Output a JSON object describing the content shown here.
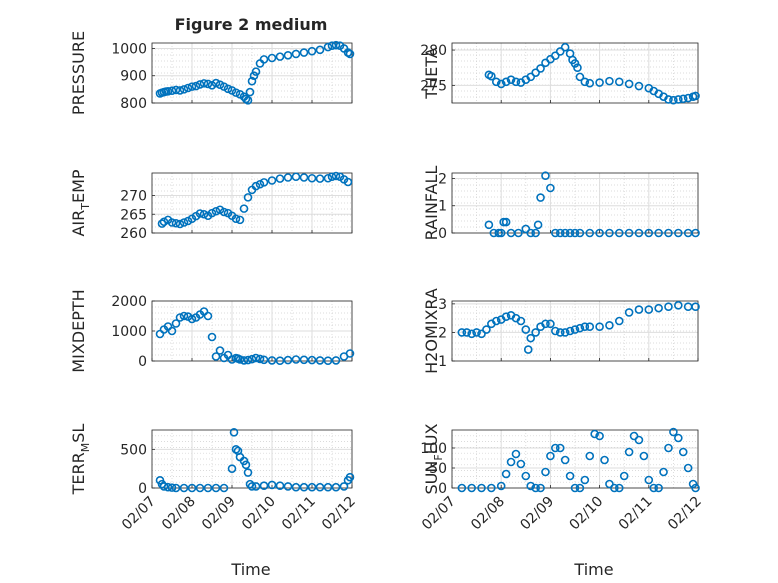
{
  "figure": {
    "title": "Figure 2 medium",
    "xlabel": "Time",
    "x_ticks": [
      "02/07",
      "02/08",
      "02/09",
      "02/10",
      "02/11",
      "02/12"
    ],
    "marker_color": "#0072bd",
    "grid_color": "#cfcfcf",
    "axis_color": "#262626"
  },
  "chart_data": [
    {
      "type": "scatter",
      "name": "PRESSURE",
      "ylabel_parts": [
        "PRESSURE"
      ],
      "xlim": [
        0,
        5
      ],
      "ylim": [
        800,
        1020
      ],
      "yticks": [
        800,
        900,
        1000
      ],
      "show_x_ticklabels": false,
      "x": [
        0.2,
        0.25,
        0.3,
        0.35,
        0.4,
        0.5,
        0.6,
        0.7,
        0.8,
        0.9,
        1.0,
        1.1,
        1.2,
        1.3,
        1.4,
        1.5,
        1.6,
        1.7,
        1.8,
        1.9,
        2.0,
        2.1,
        2.2,
        2.3,
        2.35,
        2.4,
        2.45,
        2.5,
        2.55,
        2.6,
        2.7,
        2.8,
        3.0,
        3.2,
        3.4,
        3.6,
        3.8,
        4.0,
        4.2,
        4.4,
        4.5,
        4.6,
        4.7,
        4.8,
        4.9,
        4.95
      ],
      "y": [
        835,
        838,
        840,
        842,
        843,
        845,
        848,
        846,
        850,
        855,
        860,
        862,
        868,
        872,
        870,
        865,
        873,
        867,
        860,
        852,
        846,
        838,
        832,
        823,
        815,
        810,
        840,
        880,
        900,
        915,
        945,
        960,
        965,
        970,
        975,
        980,
        985,
        990,
        995,
        1005,
        1010,
        1012,
        1010,
        1000,
        985,
        980
      ]
    },
    {
      "type": "scatter",
      "name": "THETA",
      "ylabel_parts": [
        "THETA"
      ],
      "xlim": [
        0,
        5
      ],
      "ylim": [
        272.5,
        281
      ],
      "yticks": [
        275,
        280
      ],
      "show_x_ticklabels": false,
      "x": [
        0.75,
        0.8,
        0.9,
        1.0,
        1.1,
        1.2,
        1.3,
        1.4,
        1.5,
        1.6,
        1.7,
        1.8,
        1.9,
        2.0,
        2.1,
        2.2,
        2.3,
        2.4,
        2.45,
        2.5,
        2.55,
        2.6,
        2.7,
        2.8,
        3.0,
        3.2,
        3.4,
        3.6,
        3.8,
        4.0,
        4.1,
        4.2,
        4.3,
        4.4,
        4.5,
        4.6,
        4.7,
        4.8,
        4.9,
        4.95
      ],
      "y": [
        276.5,
        276.3,
        275.5,
        275.2,
        275.5,
        275.8,
        275.5,
        275.4,
        275.8,
        276.2,
        276.8,
        277.4,
        278.2,
        278.7,
        279.2,
        279.8,
        280.4,
        279.5,
        278.6,
        278.1,
        277.5,
        276.2,
        275.5,
        275.3,
        275.4,
        275.6,
        275.5,
        275.2,
        274.9,
        274.6,
        274.2,
        273.8,
        273.4,
        273.0,
        272.9,
        273.0,
        273.1,
        273.2,
        273.4,
        273.5
      ]
    },
    {
      "type": "scatter",
      "name": "AIR_TEMP",
      "ylabel_parts": [
        "AIR",
        "T",
        "EMP"
      ],
      "xlim": [
        0,
        5
      ],
      "ylim": [
        260,
        276
      ],
      "yticks": [
        260,
        265,
        270
      ],
      "show_x_ticklabels": false,
      "x": [
        0.25,
        0.3,
        0.4,
        0.5,
        0.6,
        0.7,
        0.8,
        0.9,
        1.0,
        1.1,
        1.2,
        1.3,
        1.4,
        1.5,
        1.6,
        1.7,
        1.8,
        1.9,
        2.0,
        2.1,
        2.2,
        2.3,
        2.4,
        2.5,
        2.6,
        2.7,
        2.8,
        3.0,
        3.2,
        3.4,
        3.6,
        3.8,
        4.0,
        4.2,
        4.4,
        4.5,
        4.6,
        4.7,
        4.8,
        4.9
      ],
      "y": [
        262.5,
        263,
        263.5,
        262.8,
        262.6,
        262.4,
        262.8,
        263.2,
        263.8,
        264.5,
        265.2,
        265,
        264.6,
        265.3,
        265.8,
        266.2,
        265.6,
        265.3,
        264.6,
        263.8,
        263.5,
        266.5,
        269.5,
        271.5,
        272.5,
        273,
        273.5,
        274,
        274.5,
        274.8,
        275,
        274.8,
        274.6,
        274.5,
        274.6,
        275,
        275.2,
        275,
        274.3,
        273.6
      ]
    },
    {
      "type": "scatter",
      "name": "RAINFALL",
      "ylabel_parts": [
        "RAINFALL"
      ],
      "xlim": [
        0,
        5
      ],
      "ylim": [
        0,
        2.2
      ],
      "yticks": [
        0,
        1,
        2
      ],
      "show_x_ticklabels": false,
      "x": [
        0.75,
        0.85,
        0.95,
        1.0,
        1.05,
        1.1,
        1.2,
        1.35,
        1.5,
        1.6,
        1.7,
        1.75,
        1.8,
        1.9,
        2.0,
        2.1,
        2.2,
        2.3,
        2.4,
        2.5,
        2.6,
        2.8,
        3.0,
        3.2,
        3.4,
        3.6,
        3.8,
        4.0,
        4.2,
        4.4,
        4.6,
        4.8,
        4.95
      ],
      "y": [
        0.3,
        0,
        0,
        0,
        0.4,
        0.4,
        0,
        0,
        0.15,
        0,
        0,
        0.3,
        1.3,
        2.1,
        1.65,
        0,
        0,
        0,
        0,
        0,
        0,
        0,
        0,
        0,
        0,
        0,
        0,
        0,
        0,
        0,
        0,
        0,
        0
      ]
    },
    {
      "type": "scatter",
      "name": "MIXDEPTH",
      "ylabel_parts": [
        "MIXDEPTH"
      ],
      "xlim": [
        0,
        5
      ],
      "ylim": [
        0,
        2000
      ],
      "yticks": [
        0,
        1000,
        2000
      ],
      "show_x_ticklabels": false,
      "x": [
        0.2,
        0.3,
        0.4,
        0.5,
        0.6,
        0.7,
        0.8,
        0.9,
        1.0,
        1.1,
        1.2,
        1.3,
        1.4,
        1.5,
        1.6,
        1.7,
        1.8,
        1.9,
        2.0,
        2.1,
        2.15,
        2.2,
        2.3,
        2.4,
        2.5,
        2.6,
        2.7,
        2.8,
        3.0,
        3.2,
        3.4,
        3.6,
        3.8,
        4.0,
        4.2,
        4.4,
        4.6,
        4.8,
        4.95
      ],
      "y": [
        900,
        1050,
        1150,
        1000,
        1250,
        1450,
        1500,
        1480,
        1400,
        1450,
        1550,
        1650,
        1500,
        800,
        150,
        350,
        100,
        200,
        50,
        100,
        80,
        50,
        20,
        30,
        60,
        100,
        70,
        40,
        20,
        10,
        30,
        50,
        40,
        30,
        20,
        10,
        20,
        150,
        250
      ]
    },
    {
      "type": "scatter",
      "name": "H2OMIXRA",
      "ylabel_parts": [
        "H2OMIXRA"
      ],
      "xlim": [
        0,
        5
      ],
      "ylim": [
        1,
        3.1
      ],
      "yticks": [
        1,
        2,
        3
      ],
      "show_x_ticklabels": false,
      "x": [
        0.2,
        0.3,
        0.4,
        0.5,
        0.6,
        0.7,
        0.8,
        0.9,
        1.0,
        1.1,
        1.2,
        1.3,
        1.4,
        1.5,
        1.55,
        1.6,
        1.7,
        1.8,
        1.9,
        2.0,
        2.1,
        2.2,
        2.3,
        2.4,
        2.5,
        2.6,
        2.7,
        2.8,
        3.0,
        3.2,
        3.4,
        3.6,
        3.8,
        4.0,
        4.2,
        4.4,
        4.6,
        4.8,
        4.95
      ],
      "y": [
        2.0,
        2.0,
        1.95,
        2.0,
        1.95,
        2.1,
        2.3,
        2.4,
        2.45,
        2.55,
        2.6,
        2.5,
        2.4,
        2.1,
        1.4,
        1.8,
        2.0,
        2.2,
        2.3,
        2.3,
        2.05,
        2.0,
        2.0,
        2.05,
        2.1,
        2.15,
        2.2,
        2.2,
        2.2,
        2.25,
        2.4,
        2.7,
        2.8,
        2.8,
        2.85,
        2.9,
        2.95,
        2.9,
        2.9
      ]
    },
    {
      "type": "scatter",
      "name": "TERR_MSL",
      "ylabel_parts": [
        "TERR",
        "M",
        "SL"
      ],
      "xlim": [
        0,
        5
      ],
      "ylim": [
        0,
        750
      ],
      "yticks": [
        0,
        500
      ],
      "show_x_ticklabels": true,
      "x": [
        0.2,
        0.25,
        0.3,
        0.4,
        0.5,
        0.6,
        0.8,
        1.0,
        1.2,
        1.4,
        1.6,
        1.8,
        2.0,
        2.05,
        2.1,
        2.15,
        2.2,
        2.3,
        2.35,
        2.4,
        2.45,
        2.5,
        2.6,
        2.8,
        3.0,
        3.2,
        3.4,
        3.6,
        3.8,
        4.0,
        4.2,
        4.4,
        4.6,
        4.8,
        4.9,
        4.95
      ],
      "y": [
        100,
        50,
        20,
        10,
        5,
        0,
        0,
        0,
        0,
        0,
        0,
        0,
        250,
        720,
        500,
        480,
        400,
        350,
        300,
        200,
        50,
        20,
        20,
        30,
        40,
        30,
        20,
        10,
        10,
        10,
        10,
        10,
        10,
        20,
        100,
        140
      ]
    },
    {
      "type": "scatter",
      "name": "SUN_FLUX",
      "ylabel_parts": [
        "SUN",
        "F",
        "LUX"
      ],
      "xlim": [
        0,
        5
      ],
      "ylim": [
        0,
        145
      ],
      "yticks": [
        0,
        50,
        100
      ],
      "show_x_ticklabels": true,
      "x": [
        0.2,
        0.4,
        0.6,
        0.8,
        1.0,
        1.1,
        1.2,
        1.3,
        1.4,
        1.5,
        1.6,
        1.7,
        1.8,
        1.9,
        2.0,
        2.1,
        2.2,
        2.3,
        2.4,
        2.5,
        2.6,
        2.7,
        2.8,
        2.9,
        3.0,
        3.1,
        3.2,
        3.3,
        3.4,
        3.5,
        3.6,
        3.7,
        3.8,
        3.9,
        4.0,
        4.1,
        4.2,
        4.3,
        4.4,
        4.5,
        4.6,
        4.7,
        4.8,
        4.9,
        4.95
      ],
      "y": [
        0,
        0,
        0,
        0,
        5,
        35,
        65,
        85,
        60,
        30,
        5,
        0,
        0,
        40,
        80,
        100,
        100,
        70,
        30,
        0,
        0,
        20,
        80,
        135,
        130,
        70,
        10,
        0,
        0,
        30,
        90,
        130,
        120,
        80,
        20,
        0,
        0,
        40,
        100,
        140,
        125,
        90,
        50,
        10,
        0
      ]
    }
  ]
}
